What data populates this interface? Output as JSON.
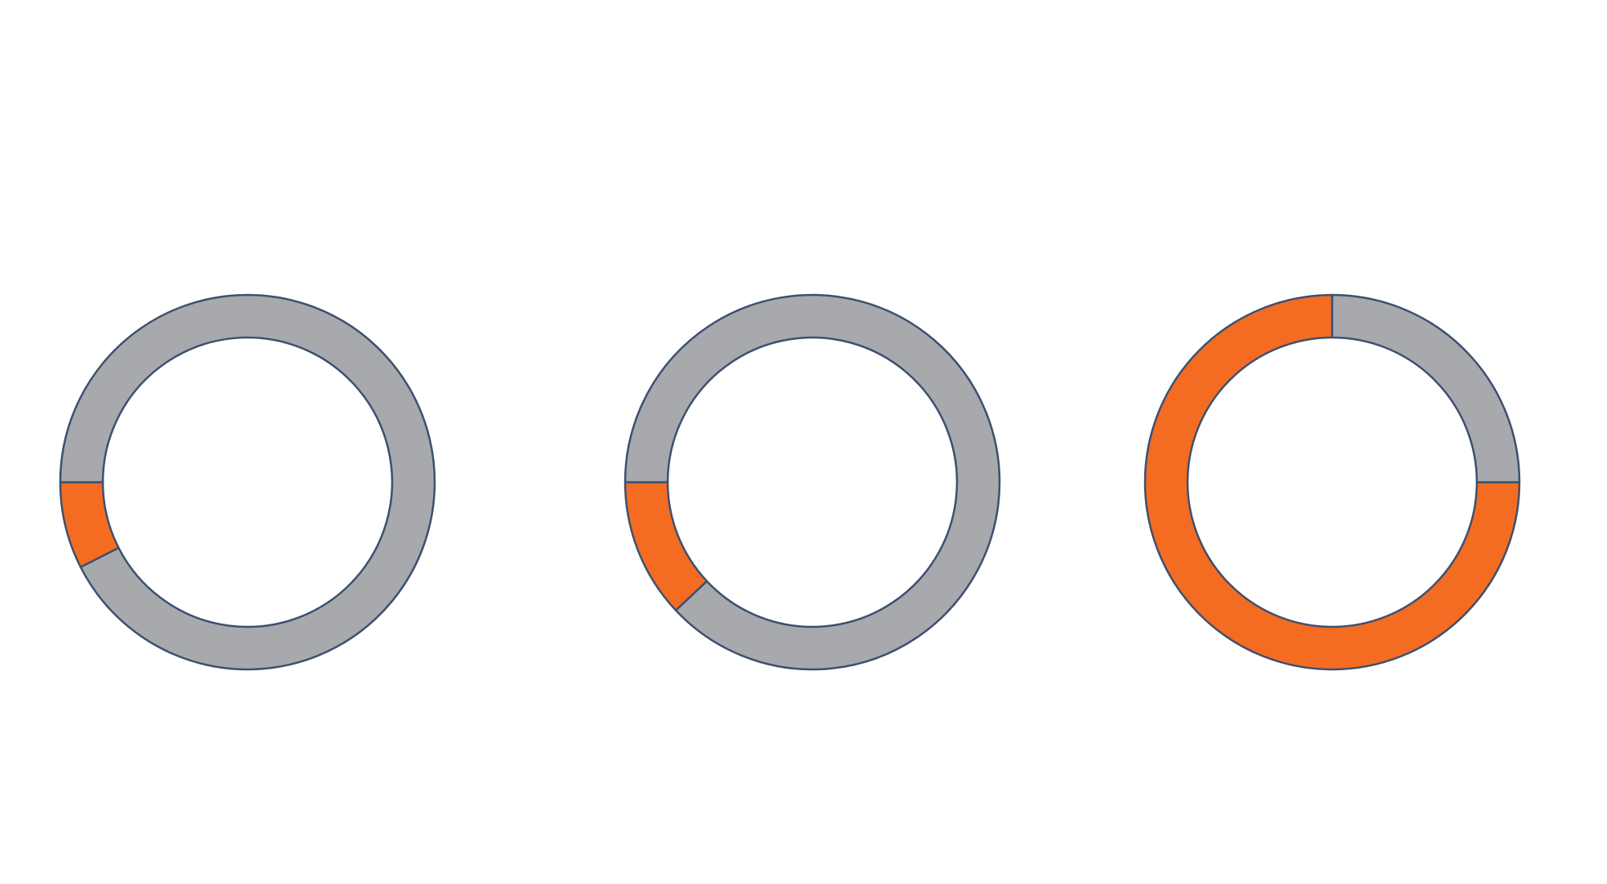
{
  "colors": {
    "highlight": "#F36C21",
    "remainder": "#A7A9AC",
    "outline": "#3C5070",
    "background": "#FFFFFF"
  },
  "chart_data": [
    {
      "type": "pie",
      "style": "donut",
      "title": "",
      "slices": [
        {
          "name": "",
          "value": 7.5,
          "color": "#F36C21"
        },
        {
          "name": "",
          "value": 92.5,
          "color": "#A7A9AC"
        }
      ],
      "start": "left",
      "direction": "counterclockwise"
    },
    {
      "type": "pie",
      "style": "donut",
      "title": "",
      "slices": [
        {
          "name": "",
          "value": 12,
          "color": "#F36C21"
        },
        {
          "name": "",
          "value": 88,
          "color": "#A7A9AC"
        }
      ],
      "start": "left",
      "direction": "counterclockwise"
    },
    {
      "type": "pie",
      "style": "donut",
      "title": "",
      "slices": [
        {
          "name": "",
          "value": 75,
          "color": "#F36C21"
        },
        {
          "name": "",
          "value": 25,
          "color": "#A7A9AC"
        }
      ],
      "start": "right",
      "direction": "clockwise"
    }
  ]
}
